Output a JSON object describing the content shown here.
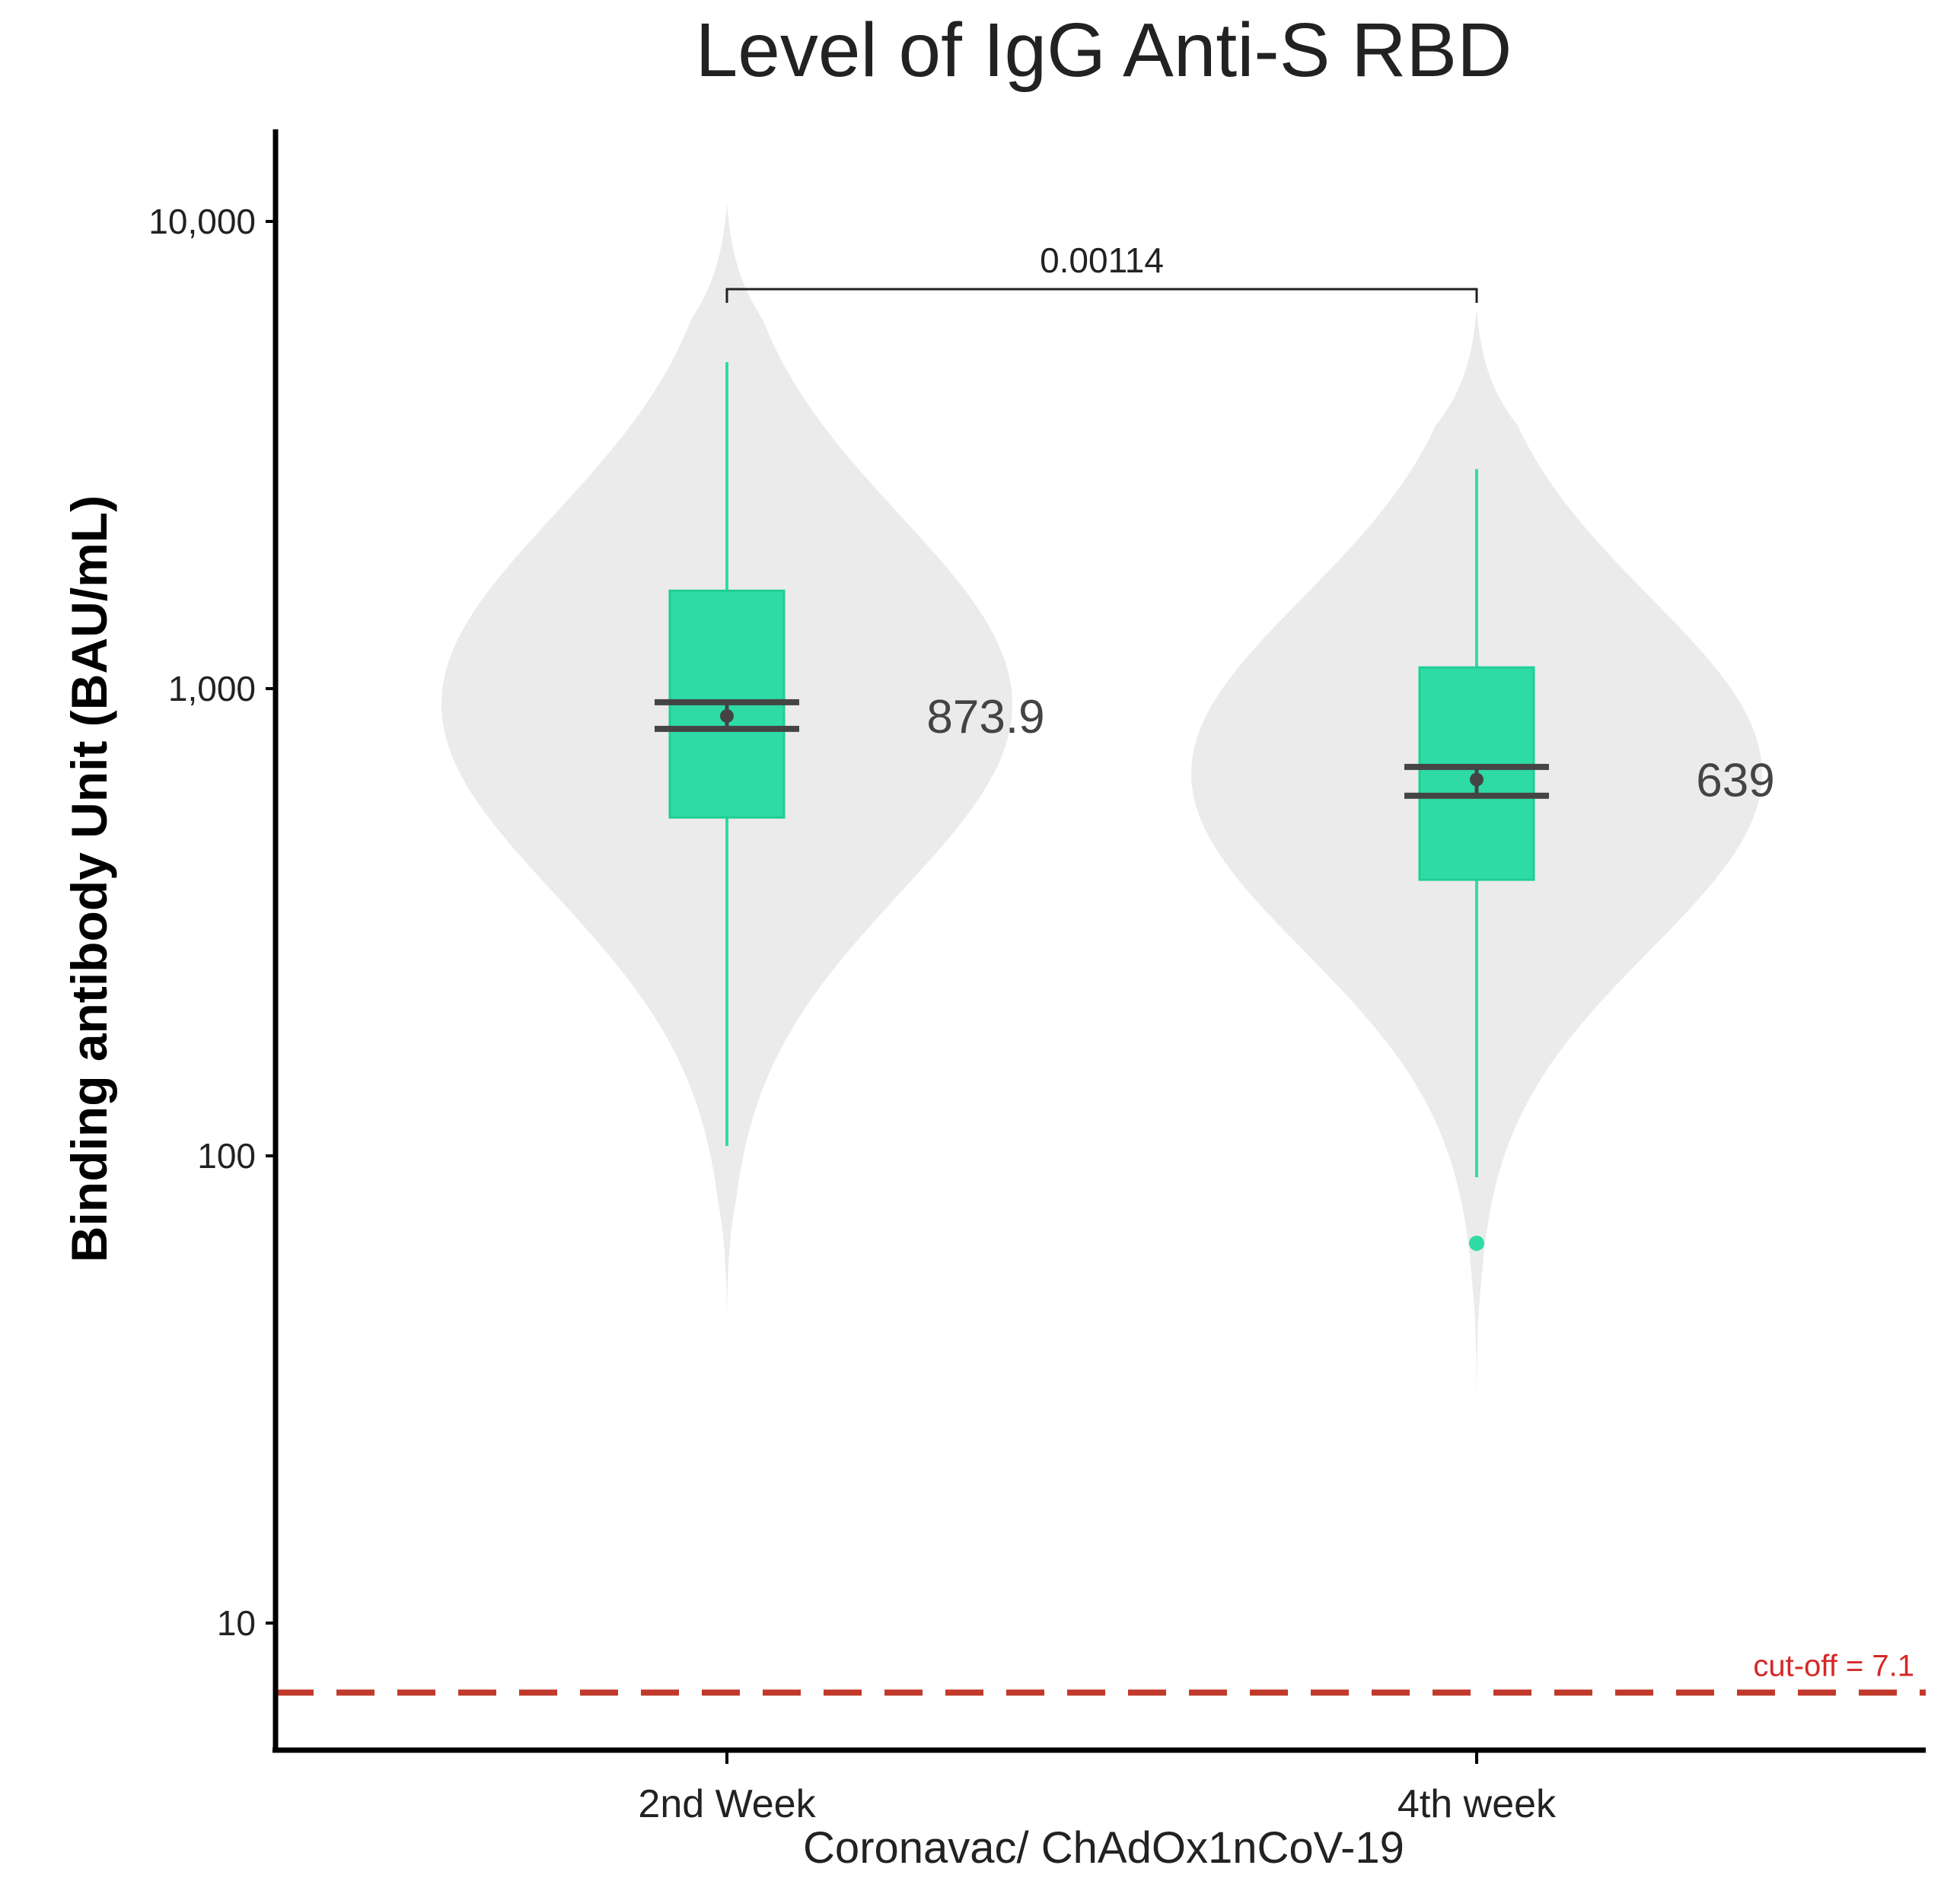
{
  "chart_data": {
    "type": "violin-box",
    "title": "Level of IgG Anti-S RBD",
    "xlabel": "Coronavac/ ChAdOx1nCoV-19",
    "ylabel": "Binding antibody Unit (BAU/mL)",
    "yscale": "log10",
    "ylim": [
      5,
      15000
    ],
    "yticks": [
      {
        "value": 10,
        "label": "10"
      },
      {
        "value": 100,
        "label": "100"
      },
      {
        "value": 1000,
        "label": "1,000"
      },
      {
        "value": 10000,
        "label": "10,000"
      }
    ],
    "categories": [
      "2nd Week",
      "4th week"
    ],
    "groups": [
      {
        "name": "2nd Week",
        "whisker_low": 105,
        "q1": 530,
        "q3": 1620,
        "whisker_high": 5000,
        "mean": 873.9,
        "ci_low": 820,
        "ci_high": 935,
        "mean_label": "873.9",
        "outliers": [],
        "violin_range": [
          45,
          11000
        ]
      },
      {
        "name": "4th week",
        "whisker_low": 90,
        "q1": 390,
        "q3": 1110,
        "whisker_high": 2950,
        "mean": 639,
        "ci_low": 590,
        "ci_high": 680,
        "mean_label": "639",
        "outliers": [
          65
        ],
        "violin_range": [
          30,
          6500
        ]
      }
    ],
    "comparison": {
      "between": [
        "2nd Week",
        "4th week"
      ],
      "p_value": "0.00114"
    },
    "reference_line": {
      "value": 7.1,
      "label": "cut-off = 7.1",
      "color": "#c0392b"
    },
    "colors": {
      "box_fill": "#2edba5",
      "box_stroke": "#1fce95",
      "violin": "#ebebeb",
      "mean_marker": "#444444",
      "cutoff_text": "#d62728"
    }
  }
}
